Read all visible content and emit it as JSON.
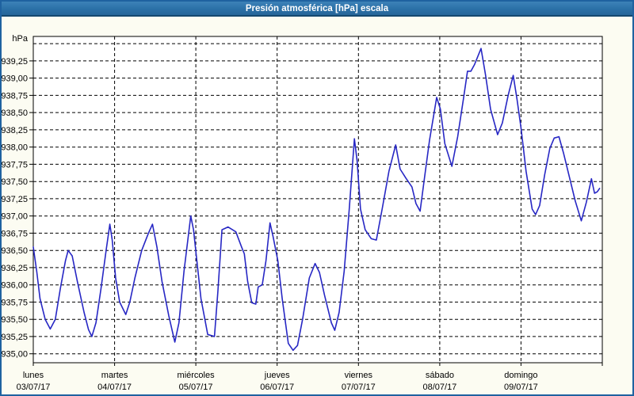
{
  "window": {
    "title": "Presión atmosférica [hPa] escala"
  },
  "colors": {
    "titlebar": "#2b70a7",
    "titlebar_border": "#15486f",
    "frame": "#1f62a0",
    "window_bg": "#fcfcf2",
    "plot_bg": "#ffffff",
    "grid": "#000000",
    "axis": "#000000",
    "label_text": "#000000",
    "line": "#2727c4"
  },
  "chart_data": {
    "type": "line",
    "title": "Presión atmosférica [hPa] escala",
    "y_unit": "hPa",
    "ylim": [
      934.87,
      939.605
    ],
    "y_tick_labels": [
      "935,00",
      "935,25",
      "935,50",
      "935,75",
      "936,00",
      "936,25",
      "936,50",
      "936,75",
      "937,00",
      "937,25",
      "937,50",
      "937,75",
      "938,00",
      "938,25",
      "938,50",
      "938,75",
      "939,00",
      "939,25"
    ],
    "y_unlabeled_gridline": 939.5,
    "grid": "dashed",
    "legend": "none",
    "x_days": [
      {
        "name": "lunes",
        "date": "03/07/17"
      },
      {
        "name": "martes",
        "date": "04/07/17"
      },
      {
        "name": "miércoles",
        "date": "05/07/17"
      },
      {
        "name": "jueves",
        "date": "06/07/17"
      },
      {
        "name": "viernes",
        "date": "07/07/17"
      },
      {
        "name": "sábado",
        "date": "08/07/17"
      },
      {
        "name": "domingo",
        "date": "09/07/17"
      }
    ],
    "x_range_hours": 168,
    "series": [
      {
        "name": "Presión atmosférica [hPa]",
        "color": "#2727c4",
        "points_t_hours_p_hpa": [
          [
            0,
            936.55
          ],
          [
            1,
            936.2
          ],
          [
            2,
            935.8
          ],
          [
            3.5,
            935.5
          ],
          [
            5,
            935.36
          ],
          [
            6.5,
            935.5
          ],
          [
            8,
            935.95
          ],
          [
            9.5,
            936.35
          ],
          [
            10.3,
            936.5
          ],
          [
            11.5,
            936.42
          ],
          [
            13,
            936.05
          ],
          [
            15,
            935.6
          ],
          [
            16.3,
            935.35
          ],
          [
            17.3,
            935.25
          ],
          [
            18.5,
            935.45
          ],
          [
            20,
            935.95
          ],
          [
            21.5,
            936.5
          ],
          [
            22.6,
            936.88
          ],
          [
            23.3,
            936.65
          ],
          [
            24.3,
            936.1
          ],
          [
            25.5,
            935.75
          ],
          [
            27.3,
            935.57
          ],
          [
            28.5,
            935.75
          ],
          [
            30,
            936.1
          ],
          [
            32,
            936.5
          ],
          [
            34,
            936.75
          ],
          [
            35.2,
            936.88
          ],
          [
            36.5,
            936.55
          ],
          [
            38,
            936.05
          ],
          [
            40,
            935.55
          ],
          [
            41.8,
            935.17
          ],
          [
            43,
            935.45
          ],
          [
            44.5,
            936.2
          ],
          [
            46.5,
            937.0
          ],
          [
            47.3,
            936.8
          ],
          [
            48.3,
            936.35
          ],
          [
            49.5,
            935.8
          ],
          [
            51.5,
            935.28
          ],
          [
            53.5,
            935.25
          ],
          [
            54.5,
            935.9
          ],
          [
            55.7,
            936.8
          ],
          [
            57.5,
            936.84
          ],
          [
            59.8,
            936.77
          ],
          [
            61.5,
            936.55
          ],
          [
            62.3,
            936.45
          ],
          [
            63.3,
            936.05
          ],
          [
            64.5,
            935.74
          ],
          [
            65.7,
            935.72
          ],
          [
            66.4,
            935.97
          ],
          [
            67.6,
            936.0
          ],
          [
            68.7,
            936.35
          ],
          [
            69.9,
            936.9
          ],
          [
            70.8,
            936.7
          ],
          [
            72.2,
            936.35
          ],
          [
            73.5,
            935.8
          ],
          [
            75.3,
            935.15
          ],
          [
            76.7,
            935.05
          ],
          [
            78,
            935.12
          ],
          [
            79.5,
            935.5
          ],
          [
            81.5,
            936.1
          ],
          [
            83.2,
            936.31
          ],
          [
            84.5,
            936.18
          ],
          [
            86,
            935.85
          ],
          [
            88,
            935.45
          ],
          [
            89,
            935.34
          ],
          [
            90.3,
            935.6
          ],
          [
            91.8,
            936.2
          ],
          [
            93.3,
            937.1
          ],
          [
            94.8,
            938.12
          ],
          [
            95.6,
            937.8
          ],
          [
            96.6,
            937.1
          ],
          [
            98,
            936.8
          ],
          [
            99.8,
            936.67
          ],
          [
            101.3,
            936.65
          ],
          [
            103,
            937.1
          ],
          [
            105,
            937.65
          ],
          [
            107,
            938.03
          ],
          [
            108.3,
            937.68
          ],
          [
            110,
            937.55
          ],
          [
            111.8,
            937.42
          ],
          [
            113,
            937.18
          ],
          [
            114.2,
            937.07
          ],
          [
            115.5,
            937.55
          ],
          [
            117,
            938.1
          ],
          [
            119.1,
            938.72
          ],
          [
            120.2,
            938.55
          ],
          [
            121.5,
            938.05
          ],
          [
            123.6,
            937.72
          ],
          [
            125.3,
            938.15
          ],
          [
            127,
            938.7
          ],
          [
            128.2,
            939.1
          ],
          [
            129.2,
            939.1
          ],
          [
            130.3,
            939.2
          ],
          [
            132.2,
            939.43
          ],
          [
            133.5,
            939.05
          ],
          [
            135,
            938.55
          ],
          [
            137.1,
            938.18
          ],
          [
            138.5,
            938.35
          ],
          [
            140.2,
            938.75
          ],
          [
            141.7,
            939.04
          ],
          [
            142.8,
            938.7
          ],
          [
            144,
            938.28
          ],
          [
            145.5,
            937.65
          ],
          [
            147.3,
            937.1
          ],
          [
            148.3,
            937.02
          ],
          [
            149.5,
            937.15
          ],
          [
            151,
            937.6
          ],
          [
            152.5,
            937.98
          ],
          [
            153.8,
            938.13
          ],
          [
            155.2,
            938.15
          ],
          [
            156.5,
            937.92
          ],
          [
            158,
            937.62
          ],
          [
            160,
            937.22
          ],
          [
            161.8,
            936.93
          ],
          [
            163.3,
            937.2
          ],
          [
            164.8,
            937.54
          ],
          [
            165.7,
            937.33
          ],
          [
            166.5,
            937.35
          ],
          [
            167.2,
            937.4
          ]
        ]
      }
    ]
  }
}
